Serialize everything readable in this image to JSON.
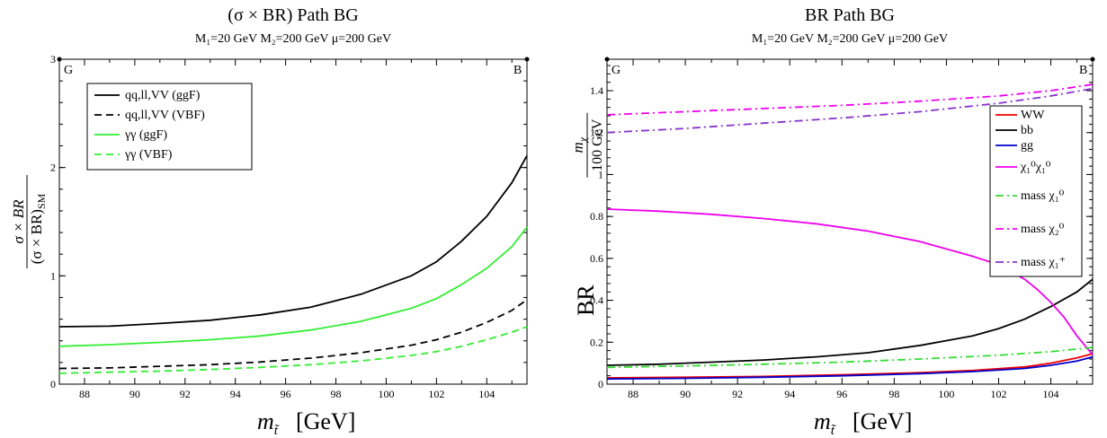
{
  "chart_data": [
    {
      "type": "line",
      "title": "(σ × BR)  Path BG",
      "subtitle": "M₁=20 GeV    M₂=200 GeV    μ=200 GeV",
      "xlabel_main": "m",
      "xlabel_sub": "t̃",
      "xlabel_unit": "[GeV]",
      "ylabel_num": "σ × BR",
      "ylabel_den": "(σ × BR)",
      "ylabel_den_sub": "SM",
      "corner_left": "G",
      "corner_right": "B",
      "xlim": [
        87,
        105.6
      ],
      "ylim": [
        0,
        3
      ],
      "xticks": [
        88,
        90,
        92,
        94,
        96,
        98,
        100,
        102,
        104
      ],
      "yticks": [
        0,
        1,
        2,
        3
      ],
      "legend_position": "top-left",
      "series": [
        {
          "name": "qq,ll,VV (ggF)",
          "color": "#000000",
          "dash": "solid",
          "x": [
            87,
            89,
            91,
            93,
            95,
            97,
            99,
            101,
            102,
            103,
            104,
            105,
            105.6
          ],
          "y": [
            0.53,
            0.535,
            0.56,
            0.59,
            0.64,
            0.71,
            0.83,
            1.0,
            1.13,
            1.32,
            1.55,
            1.86,
            2.11
          ]
        },
        {
          "name": "qq,ll,VV (VBF)",
          "color": "#000000",
          "dash": "dashed",
          "x": [
            87,
            89,
            91,
            93,
            95,
            97,
            99,
            101,
            102,
            103,
            104,
            105,
            105.6
          ],
          "y": [
            0.145,
            0.15,
            0.165,
            0.18,
            0.205,
            0.24,
            0.29,
            0.36,
            0.41,
            0.48,
            0.57,
            0.68,
            0.78
          ]
        },
        {
          "name": "γγ (ggF)",
          "color": "#33ee33",
          "dash": "solid",
          "x": [
            87,
            89,
            91,
            93,
            95,
            97,
            99,
            101,
            102,
            103,
            104,
            105,
            105.6
          ],
          "y": [
            0.35,
            0.365,
            0.385,
            0.41,
            0.445,
            0.5,
            0.58,
            0.7,
            0.79,
            0.92,
            1.07,
            1.27,
            1.45
          ]
        },
        {
          "name": "γγ (VBF)",
          "color": "#33ee33",
          "dash": "dashed",
          "x": [
            87,
            89,
            91,
            93,
            95,
            97,
            99,
            101,
            102,
            103,
            104,
            105,
            105.6
          ],
          "y": [
            0.1,
            0.11,
            0.12,
            0.135,
            0.155,
            0.18,
            0.215,
            0.265,
            0.3,
            0.35,
            0.41,
            0.48,
            0.53
          ]
        }
      ]
    },
    {
      "type": "line",
      "title": "BR  Path BG",
      "subtitle": "M₁=20 GeV    M₂=200 GeV    μ=200 GeV",
      "xlabel_main": "m",
      "xlabel_sub": "t̃",
      "xlabel_unit": "[GeV]",
      "ylabel": "BR",
      "ylabel_mass_num": "m",
      "ylabel_mass_sub": "χ",
      "ylabel_mass_den": "100 GeV",
      "corner_left": "G",
      "corner_right": "B",
      "xlim": [
        87,
        105.6
      ],
      "ylim": [
        0,
        1.55
      ],
      "xticks": [
        88,
        90,
        92,
        94,
        96,
        98,
        100,
        102,
        104
      ],
      "yticks": [
        0,
        0.2,
        0.4,
        0.6,
        0.8,
        1,
        1.2,
        1.4
      ],
      "ytick_labels": [
        "0",
        "0.2",
        "0.4",
        "0.6",
        "0.8",
        "1",
        "1.2",
        "1.4"
      ],
      "legend_position": "right",
      "series": [
        {
          "name": "WW",
          "color": "#ee0000",
          "dash": "solid",
          "x": [
            87,
            90,
            93,
            96,
            99,
            101,
            103,
            104,
            105,
            105.6
          ],
          "y": [
            0.03,
            0.033,
            0.037,
            0.045,
            0.055,
            0.065,
            0.082,
            0.1,
            0.125,
            0.145
          ]
        },
        {
          "name": "bb",
          "color": "#000000",
          "dash": "solid",
          "x": [
            87,
            89,
            91,
            93,
            95,
            97,
            99,
            101,
            102,
            103,
            104,
            105,
            105.6
          ],
          "y": [
            0.09,
            0.095,
            0.105,
            0.115,
            0.13,
            0.15,
            0.185,
            0.23,
            0.265,
            0.31,
            0.37,
            0.44,
            0.5
          ]
        },
        {
          "name": "gg",
          "color": "#0000cc",
          "dash": "solid",
          "x": [
            87,
            90,
            93,
            96,
            99,
            101,
            103,
            104,
            105,
            105.6
          ],
          "y": [
            0.025,
            0.028,
            0.033,
            0.04,
            0.05,
            0.06,
            0.075,
            0.09,
            0.11,
            0.13
          ]
        },
        {
          "name": "χ₁⁰χ₁⁰",
          "color": "#ee00ee",
          "dash": "solid",
          "x": [
            87,
            89,
            91,
            93,
            95,
            97,
            99,
            101,
            102,
            103,
            103.5,
            104,
            104.5,
            105,
            105.6
          ],
          "y": [
            0.835,
            0.825,
            0.81,
            0.79,
            0.765,
            0.73,
            0.68,
            0.61,
            0.57,
            0.5,
            0.45,
            0.39,
            0.32,
            0.23,
            0.14
          ]
        },
        {
          "name": "mass χ₁⁰",
          "color": "#33dd33",
          "dash": "dashdot",
          "x": [
            87,
            90,
            93,
            96,
            99,
            102,
            104,
            105.6
          ],
          "y": [
            0.08,
            0.087,
            0.095,
            0.105,
            0.12,
            0.138,
            0.155,
            0.175
          ]
        },
        {
          "name": "mass χ₂⁰",
          "color": "#ee00ee",
          "dash": "dashdot",
          "x": [
            87,
            90,
            93,
            96,
            99,
            102,
            104,
            105.6
          ],
          "y": [
            1.285,
            1.3,
            1.315,
            1.33,
            1.35,
            1.375,
            1.4,
            1.43
          ]
        },
        {
          "name": "mass χ₁⁺",
          "color": "#8833cc",
          "dash": "dashdot",
          "x": [
            87,
            90,
            93,
            96,
            99,
            102,
            104,
            105.6
          ],
          "y": [
            1.2,
            1.22,
            1.245,
            1.27,
            1.3,
            1.34,
            1.375,
            1.41
          ]
        }
      ]
    }
  ]
}
